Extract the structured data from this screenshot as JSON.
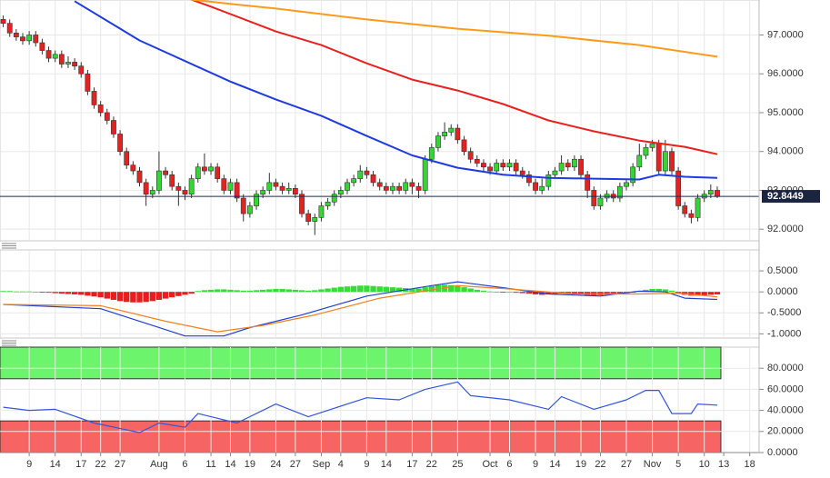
{
  "chart_data": [
    {
      "type": "candlestick",
      "categories": [
        null,
        null,
        null,
        null,
        "9",
        null,
        null,
        null,
        "14",
        null,
        null,
        null,
        "17",
        null,
        null,
        "22",
        null,
        null,
        "27",
        null,
        null,
        null,
        null,
        null,
        "Aug",
        null,
        null,
        null,
        "6",
        null,
        null,
        null,
        "11",
        null,
        null,
        "14",
        null,
        null,
        "19",
        null,
        null,
        null,
        "24",
        null,
        null,
        "27",
        null,
        null,
        null,
        "Sep",
        null,
        null,
        "4",
        null,
        null,
        null,
        "9",
        null,
        null,
        "14",
        null,
        null,
        null,
        "17",
        null,
        null,
        "22",
        null,
        null,
        null,
        "25",
        null,
        null,
        null,
        null,
        "Oct",
        null,
        null,
        "6",
        null,
        null,
        null,
        "9",
        null,
        null,
        "14",
        null,
        null,
        null,
        "19",
        null,
        null,
        "22",
        null,
        null,
        null,
        "27",
        null,
        null,
        null,
        "Nov",
        null,
        null,
        null,
        "5",
        null,
        null,
        null,
        "10",
        null,
        null,
        "13",
        null,
        null,
        null,
        "18"
      ],
      "open": [
        97.4,
        97.3,
        97.05,
        96.95,
        96.85,
        97.0,
        96.8,
        96.6,
        96.4,
        96.5,
        96.25,
        96.3,
        96.2,
        96.0,
        95.55,
        95.2,
        95.0,
        94.8,
        94.45,
        94.0,
        93.65,
        93.5,
        93.2,
        92.9,
        93.0,
        93.5,
        93.4,
        93.1,
        93.0,
        92.9,
        93.3,
        93.6,
        93.5,
        93.6,
        93.3,
        93.0,
        93.2,
        92.8,
        92.4,
        92.6,
        92.9,
        93.0,
        93.2,
        93.1,
        93.0,
        93.05,
        92.9,
        92.4,
        92.2,
        92.3,
        92.6,
        92.7,
        92.9,
        93.0,
        93.2,
        93.3,
        93.5,
        93.4,
        93.2,
        93.1,
        93.0,
        93.1,
        93.0,
        93.2,
        93.1,
        93.0,
        93.8,
        94.1,
        94.4,
        94.5,
        94.6,
        94.3,
        94.0,
        93.8,
        93.7,
        93.6,
        93.5,
        93.7,
        93.6,
        93.7,
        93.5,
        93.4,
        93.2,
        93.0,
        93.1,
        93.4,
        93.5,
        93.7,
        93.6,
        93.8,
        93.4,
        93.0,
        92.6,
        92.8,
        92.9,
        92.8,
        93.1,
        93.2,
        93.6,
        93.9,
        94.1,
        94.2,
        93.5,
        94.0,
        93.5,
        92.6,
        92.4,
        92.3,
        92.8,
        92.9,
        93.0,
        null,
        null,
        null,
        null,
        null
      ],
      "high": [
        97.5,
        97.4,
        97.15,
        97.05,
        97.1,
        97.1,
        96.9,
        96.7,
        96.6,
        96.6,
        96.45,
        96.4,
        96.3,
        96.1,
        95.65,
        95.3,
        95.1,
        94.9,
        94.55,
        94.1,
        93.75,
        93.6,
        93.3,
        93.1,
        94.0,
        93.6,
        93.5,
        93.2,
        93.1,
        93.4,
        93.7,
        93.95,
        93.7,
        93.7,
        93.4,
        93.3,
        93.3,
        92.9,
        92.7,
        93.0,
        93.1,
        93.45,
        93.3,
        93.2,
        93.2,
        93.15,
        93.0,
        92.5,
        92.4,
        92.7,
        92.8,
        93.0,
        93.1,
        93.3,
        93.4,
        93.65,
        93.6,
        93.5,
        93.3,
        93.2,
        93.2,
        93.2,
        93.3,
        93.3,
        93.2,
        93.9,
        94.2,
        94.5,
        94.75,
        94.7,
        94.7,
        94.4,
        94.1,
        93.9,
        93.8,
        93.7,
        93.8,
        93.8,
        93.8,
        93.8,
        93.6,
        93.5,
        93.3,
        93.3,
        93.5,
        93.6,
        93.9,
        93.8,
        93.9,
        93.9,
        93.5,
        93.1,
        92.9,
        93.0,
        93.0,
        93.2,
        93.3,
        93.7,
        94.2,
        94.2,
        94.3,
        94.3,
        94.3,
        94.1,
        93.6,
        92.7,
        92.5,
        92.9,
        93.0,
        93.15,
        93.1,
        null,
        null,
        null,
        null,
        null
      ],
      "low": [
        97.2,
        96.95,
        96.85,
        96.75,
        96.75,
        96.7,
        96.5,
        96.3,
        96.3,
        96.15,
        96.15,
        96.1,
        95.9,
        95.45,
        95.1,
        94.9,
        94.7,
        94.35,
        93.9,
        93.55,
        93.4,
        93.1,
        92.6,
        92.8,
        92.9,
        93.3,
        93.0,
        92.6,
        92.75,
        92.8,
        93.2,
        93.4,
        93.4,
        93.2,
        92.9,
        92.9,
        92.7,
        92.2,
        92.3,
        92.5,
        92.8,
        92.9,
        93.0,
        92.9,
        92.9,
        92.8,
        92.3,
        92.1,
        91.85,
        92.2,
        92.5,
        92.6,
        92.8,
        92.9,
        93.1,
        93.2,
        93.3,
        93.1,
        93.0,
        92.9,
        92.9,
        92.9,
        92.9,
        92.9,
        92.8,
        92.9,
        93.7,
        94.0,
        94.3,
        94.4,
        94.2,
        93.9,
        93.7,
        93.6,
        93.5,
        93.4,
        93.4,
        93.5,
        93.5,
        93.4,
        93.3,
        93.1,
        92.9,
        92.9,
        93.0,
        93.3,
        93.4,
        93.5,
        93.5,
        93.3,
        92.8,
        92.5,
        92.5,
        92.7,
        92.7,
        92.7,
        93.0,
        93.1,
        93.5,
        93.8,
        94.0,
        93.4,
        93.4,
        93.4,
        92.5,
        92.3,
        92.15,
        92.2,
        92.7,
        92.8,
        92.8,
        null,
        null,
        null,
        null,
        null
      ],
      "close": [
        97.3,
        97.05,
        96.95,
        96.85,
        97.0,
        96.8,
        96.6,
        96.4,
        96.5,
        96.25,
        96.3,
        96.2,
        96.0,
        95.55,
        95.2,
        95.0,
        94.8,
        94.45,
        94.0,
        93.65,
        93.5,
        93.2,
        92.9,
        93.0,
        93.5,
        93.4,
        93.1,
        93.0,
        92.9,
        93.3,
        93.6,
        93.5,
        93.6,
        93.3,
        93.0,
        93.2,
        92.8,
        92.4,
        92.6,
        92.9,
        93.0,
        93.2,
        93.1,
        93.0,
        93.05,
        92.9,
        92.4,
        92.2,
        92.3,
        92.6,
        92.7,
        92.9,
        93.0,
        93.2,
        93.3,
        93.5,
        93.4,
        93.2,
        93.1,
        93.0,
        93.1,
        93.0,
        93.2,
        93.1,
        93.0,
        93.8,
        94.1,
        94.4,
        94.5,
        94.6,
        94.3,
        94.0,
        93.8,
        93.7,
        93.6,
        93.5,
        93.7,
        93.6,
        93.7,
        93.5,
        93.4,
        93.2,
        93.0,
        93.1,
        93.4,
        93.5,
        93.7,
        93.6,
        93.8,
        93.4,
        93.0,
        92.6,
        92.8,
        92.9,
        92.8,
        93.1,
        93.2,
        93.6,
        93.9,
        94.1,
        94.2,
        93.5,
        94.0,
        93.5,
        92.6,
        92.4,
        92.3,
        92.8,
        92.9,
        93.0,
        92.84,
        null,
        null,
        null,
        null,
        null
      ],
      "up_color": "#33d633",
      "down_color": "#e42222",
      "lines": [
        {
          "color": "#1f3be0",
          "x": [
            11,
            21,
            35,
            42,
            49,
            56,
            63,
            70,
            77,
            84,
            91,
            98,
            101,
            105,
            110
          ],
          "values": [
            97.87,
            96.86,
            95.8,
            95.34,
            94.92,
            94.4,
            93.9,
            93.58,
            93.4,
            93.32,
            93.3,
            93.28,
            93.4,
            93.35,
            93.32
          ]
        },
        {
          "color": "#e8201e",
          "x": [
            29,
            32,
            42,
            49,
            56,
            63,
            70,
            77,
            84,
            91,
            98,
            105,
            110
          ],
          "values": [
            97.91,
            97.73,
            97.09,
            96.74,
            96.27,
            95.85,
            95.57,
            95.22,
            94.8,
            94.52,
            94.28,
            94.12,
            93.93
          ]
        },
        {
          "color": "#ff9a1a",
          "x": [
            29,
            35,
            42,
            56,
            70,
            84,
            98,
            110
          ],
          "values": [
            97.91,
            97.8,
            97.68,
            97.4,
            97.16,
            96.98,
            96.74,
            96.44
          ]
        }
      ],
      "ylim": [
        91.7,
        97.9
      ],
      "yticks": [
        {
          "value": 92,
          "label": "92.0000"
        },
        {
          "value": 93,
          "label": "93.0000"
        },
        {
          "value": 94,
          "label": "94.0000"
        },
        {
          "value": 95,
          "label": "95.0000"
        },
        {
          "value": 96,
          "label": "96.0000"
        },
        {
          "value": 97,
          "label": "97.0000"
        }
      ],
      "last_price": 92.8449,
      "grid": true
    },
    {
      "type": "macd",
      "histogram": [
        0.02,
        0.02,
        0.01,
        0.01,
        0.01,
        0.0,
        -0.01,
        -0.02,
        -0.03,
        -0.04,
        -0.05,
        -0.06,
        -0.07,
        -0.09,
        -0.11,
        -0.13,
        -0.16,
        -0.19,
        -0.22,
        -0.24,
        -0.25,
        -0.25,
        -0.24,
        -0.22,
        -0.19,
        -0.16,
        -0.13,
        -0.1,
        -0.07,
        -0.04,
        0.02,
        0.04,
        0.05,
        0.06,
        0.06,
        0.05,
        0.04,
        0.03,
        0.03,
        0.04,
        0.05,
        0.06,
        0.07,
        0.07,
        0.06,
        0.05,
        0.04,
        0.03,
        0.04,
        0.06,
        0.08,
        0.1,
        0.12,
        0.13,
        0.14,
        0.15,
        0.15,
        0.14,
        0.13,
        0.12,
        0.11,
        0.1,
        0.09,
        0.08,
        0.08,
        0.11,
        0.14,
        0.16,
        0.17,
        0.16,
        0.14,
        0.11,
        0.08,
        0.05,
        0.03,
        0.01,
        0.0,
        -0.01,
        0.0,
        -0.02,
        -0.03,
        -0.04,
        -0.06,
        -0.07,
        -0.06,
        -0.05,
        -0.04,
        -0.03,
        -0.04,
        -0.06,
        -0.08,
        -0.09,
        -0.08,
        -0.07,
        -0.06,
        -0.05,
        -0.03,
        -0.01,
        0.02,
        0.05,
        0.07,
        0.07,
        0.06,
        0.03,
        -0.03,
        -0.07,
        -0.09,
        -0.09,
        -0.08,
        -0.07,
        -0.06,
        null,
        null,
        null,
        null,
        null
      ],
      "up_color": "#33dd33",
      "down_color": "#e81e1e",
      "lines": [
        {
          "color": "#2040d0",
          "x": [
            0,
            15,
            22,
            28,
            34,
            38,
            46,
            56,
            66,
            70,
            77,
            84,
            92,
            98,
            102,
            105,
            110
          ],
          "values": [
            -0.3,
            -0.4,
            -0.75,
            -1.05,
            -1.05,
            -0.85,
            -0.55,
            -0.1,
            0.15,
            0.24,
            0.1,
            -0.05,
            -0.1,
            0.02,
            0.0,
            -0.15,
            -0.18
          ]
        },
        {
          "color": "#f08020",
          "x": [
            0,
            15,
            25,
            33,
            40,
            48,
            58,
            70,
            78,
            88,
            98,
            104,
            110
          ],
          "values": [
            -0.3,
            -0.33,
            -0.7,
            -0.95,
            -0.8,
            -0.55,
            -0.15,
            0.15,
            0.07,
            -0.05,
            -0.05,
            -0.03,
            -0.12
          ]
        }
      ],
      "ylim": [
        -1.1,
        1.0
      ],
      "yticks": [
        {
          "value": -1,
          "label": "-1.0000"
        },
        {
          "value": -0.5,
          "label": "-0.5000"
        },
        {
          "value": 0,
          "label": "0.0000"
        },
        {
          "value": 0.5,
          "label": "0.5000"
        }
      ],
      "grid": true
    },
    {
      "type": "rsi",
      "lines": [
        {
          "color": "#3355dd",
          "x": [
            0,
            4,
            8,
            14,
            21,
            24,
            28,
            30,
            36,
            42,
            47,
            53,
            56,
            61,
            65,
            70,
            72,
            78,
            84,
            86,
            91,
            96,
            99,
            101,
            103,
            106,
            107,
            110
          ],
          "values": [
            43,
            40,
            41,
            28,
            19,
            28,
            24,
            37,
            28,
            46,
            34,
            46,
            52,
            50,
            60,
            67,
            54,
            50,
            41,
            53,
            41,
            50,
            59,
            59,
            37,
            37,
            46,
            45
          ]
        }
      ],
      "zones": [
        {
          "range": [
            70,
            100
          ],
          "color": "#6cf56c"
        },
        {
          "range": [
            0,
            30
          ],
          "color": "#f76464"
        }
      ],
      "ylim": [
        0,
        100
      ],
      "yticks": [
        {
          "value": 0,
          "label": "0.0000"
        },
        {
          "value": 20,
          "label": "20.0000"
        },
        {
          "value": 40,
          "label": "40.0000"
        },
        {
          "value": 60,
          "label": "60.0000"
        },
        {
          "value": 80,
          "label": "80.0000"
        }
      ],
      "grid": true
    }
  ]
}
